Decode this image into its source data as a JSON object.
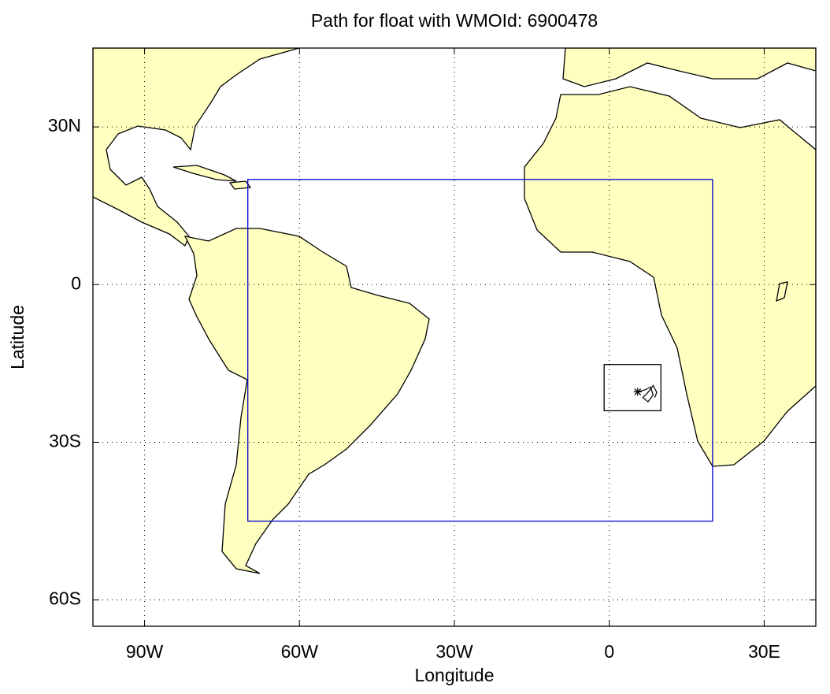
{
  "chart_data": {
    "type": "map",
    "title": "Path for float with WMOId: 6900478",
    "x_label": "Longitude",
    "y_label": "Latitude",
    "xlim": [
      -100,
      40
    ],
    "ylim": [
      -65,
      45
    ],
    "xticks": [
      {
        "value": -90,
        "label": "90W"
      },
      {
        "value": -60,
        "label": "60W"
      },
      {
        "value": -30,
        "label": "30W"
      },
      0,
      {
        "value": 30,
        "label": "30E"
      }
    ],
    "yticks": [
      {
        "value": -60,
        "label": "60S"
      },
      {
        "value": -30,
        "label": "30S"
      },
      0,
      {
        "value": 30,
        "label": "30N"
      }
    ],
    "grid": true,
    "region_box": {
      "lon": [
        -70,
        20
      ],
      "lat": [
        -45,
        20
      ],
      "color": "#0000cc"
    },
    "float_box": {
      "lon": [
        -1,
        10
      ],
      "lat": [
        -15.2,
        -24
      ],
      "color": "#000000"
    },
    "track": {
      "lon": [
        5.5,
        7,
        8,
        8.5,
        7.5,
        6.5,
        7.5,
        8.5,
        9.2,
        8.8
      ],
      "lat": [
        -20.4,
        -20,
        -19.5,
        -21,
        -22.3,
        -21.5,
        -20.5,
        -19.2,
        -20.5,
        -21.5
      ],
      "color": "#000000"
    }
  }
}
